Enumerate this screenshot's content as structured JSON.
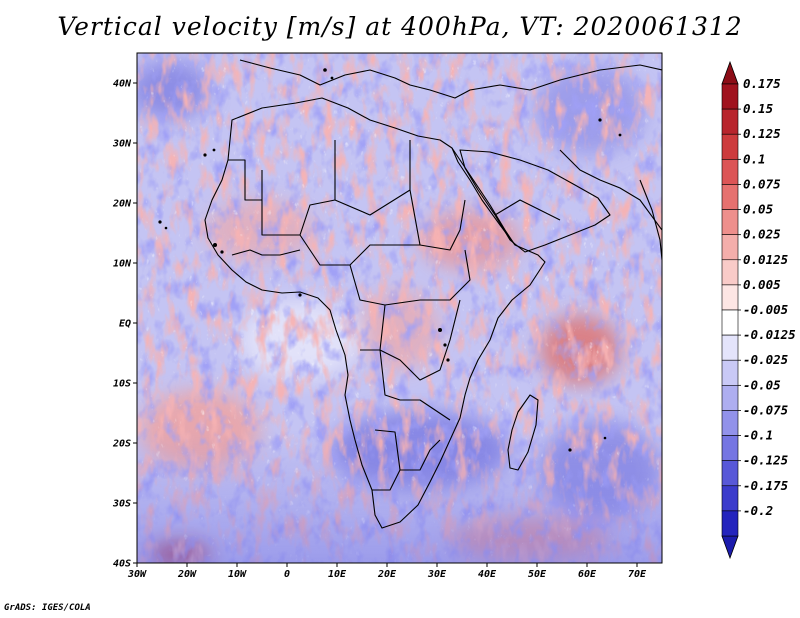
{
  "title": "Vertical velocity [m/s] at 400hPa, VT: 2020061312",
  "credit": "GrADS: IGES/COLA",
  "map": {
    "lon_range": [
      -30,
      75
    ],
    "lat_range": [
      -40,
      45
    ],
    "lat_ticks": [
      {
        "value": 40,
        "label": "40N"
      },
      {
        "value": 30,
        "label": "30N"
      },
      {
        "value": 20,
        "label": "20N"
      },
      {
        "value": 10,
        "label": "10N"
      },
      {
        "value": 0,
        "label": "EQ"
      },
      {
        "value": -10,
        "label": "10S"
      },
      {
        "value": -20,
        "label": "20S"
      },
      {
        "value": -30,
        "label": "30S"
      },
      {
        "value": -40,
        "label": "40S"
      }
    ],
    "lon_ticks": [
      {
        "value": -30,
        "label": "30W"
      },
      {
        "value": -20,
        "label": "20W"
      },
      {
        "value": -10,
        "label": "10W"
      },
      {
        "value": 0,
        "label": "0"
      },
      {
        "value": 10,
        "label": "10E"
      },
      {
        "value": 20,
        "label": "20E"
      },
      {
        "value": 30,
        "label": "30E"
      },
      {
        "value": 40,
        "label": "40E"
      },
      {
        "value": 50,
        "label": "50E"
      },
      {
        "value": 60,
        "label": "60E"
      },
      {
        "value": 70,
        "label": "70E"
      }
    ]
  },
  "colorbar": {
    "levels": [
      {
        "label": "0.175",
        "color": "#a0121e"
      },
      {
        "label": "0.15",
        "color": "#b8252d"
      },
      {
        "label": "0.125",
        "color": "#cd3b3d"
      },
      {
        "label": "0.1",
        "color": "#dc5556"
      },
      {
        "label": "0.075",
        "color": "#e6716f"
      },
      {
        "label": "0.05",
        "color": "#ee8f8c"
      },
      {
        "label": "0.025",
        "color": "#f4aeab"
      },
      {
        "label": "0.0125",
        "color": "#f9cbc8"
      },
      {
        "label": "0.005",
        "color": "#fde6e4"
      },
      {
        "label": "-0.005",
        "color": "#ffffff"
      },
      {
        "label": "-0.0125",
        "color": "#e4e4fb"
      },
      {
        "label": "-0.025",
        "color": "#c9c9f6"
      },
      {
        "label": "-0.05",
        "color": "#aeaef0"
      },
      {
        "label": "-0.075",
        "color": "#9292ea"
      },
      {
        "label": "-0.1",
        "color": "#7575e2"
      },
      {
        "label": "-0.125",
        "color": "#5858d8"
      },
      {
        "label": "-0.175",
        "color": "#3b3bcc"
      },
      {
        "label": "-0.2",
        "color": "#2424bd"
      }
    ],
    "top_arrow_color": "#8c0d17",
    "bottom_arrow_color": "#1c1cad"
  }
}
